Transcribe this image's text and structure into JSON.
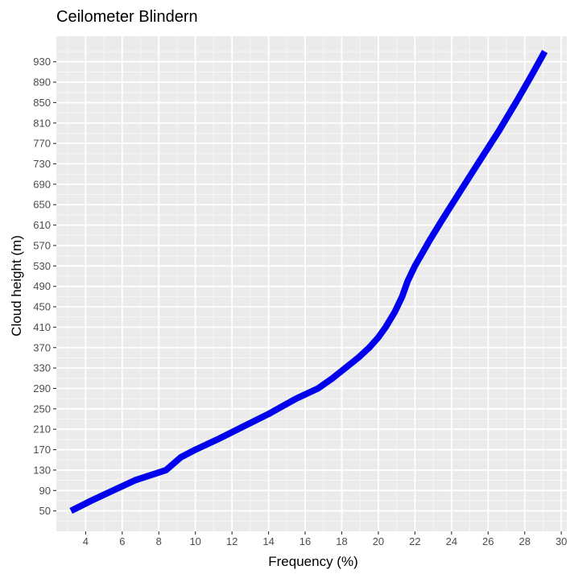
{
  "chart_data": {
    "type": "line",
    "title": "Ceilometer Blindern",
    "xlabel": "Frequency (%)",
    "ylabel": "Cloud height (m)",
    "xlim": [
      2.4,
      30.3
    ],
    "ylim": [
      10,
      980
    ],
    "x_ticks": [
      4,
      6,
      8,
      10,
      12,
      14,
      16,
      18,
      20,
      22,
      24,
      26,
      28,
      30
    ],
    "y_ticks": [
      50,
      90,
      130,
      170,
      210,
      250,
      290,
      330,
      370,
      410,
      450,
      490,
      530,
      570,
      610,
      650,
      690,
      730,
      770,
      810,
      850,
      890,
      930
    ],
    "grid": true,
    "legend": "none",
    "series": [
      {
        "color": "#0000ee",
        "x": [
          3.2,
          4.3,
          5.5,
          6.7,
          8.4,
          9.2,
          10.0,
          11.2,
          12.6,
          14.0,
          15.5,
          16.7,
          17.5,
          18.2,
          18.9,
          19.5,
          20.0,
          20.4,
          20.9,
          21.3,
          21.6,
          22.0,
          22.4,
          22.8,
          23.4,
          24.1,
          24.9,
          25.7,
          26.6,
          27.6,
          28.4,
          29.1
        ],
        "y": [
          50,
          70,
          90,
          110,
          130,
          155,
          170,
          190,
          215,
          240,
          270,
          290,
          310,
          330,
          350,
          370,
          390,
          410,
          440,
          470,
          500,
          530,
          555,
          580,
          615,
          655,
          700,
          745,
          795,
          855,
          905,
          950
        ]
      }
    ]
  }
}
